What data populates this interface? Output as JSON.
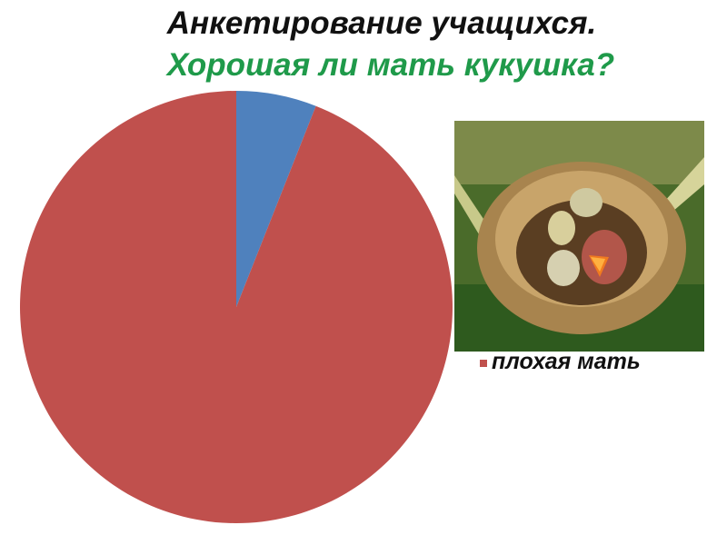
{
  "title": "Анкетирование учащихся.",
  "subtitle": "Хорошая ли мать кукушка?",
  "chart_data": {
    "type": "pie",
    "slices": [
      {
        "label": "",
        "value": 6,
        "color": "#4f81bd"
      },
      {
        "label": "плохая мать",
        "value": 94,
        "color": "#c0504d"
      }
    ],
    "start_angle": "top, clockwise",
    "legend": {
      "placement": "right",
      "entries": [
        "плохая мать"
      ]
    }
  },
  "photo": {
    "subject": "nest-with-eggs-and-cuckoo-chick"
  }
}
